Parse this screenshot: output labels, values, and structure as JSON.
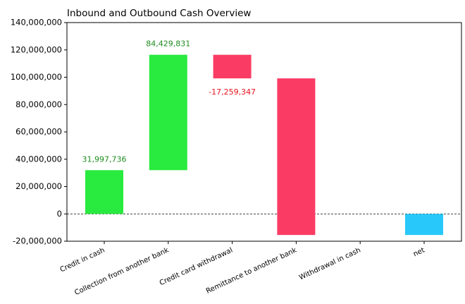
{
  "chart_data": {
    "type": "waterfall",
    "title": "Inbound and Outbound Cash Overview",
    "categories": [
      "Credit in cash",
      "Collection from another bank",
      "Credit card withdrawal",
      "Remittance to another bank",
      "Withdrawal in cash",
      "net"
    ],
    "values": [
      31997736,
      84429831,
      -17259347,
      -114600000,
      0,
      -15431780
    ],
    "value_labels": [
      "31,997,736",
      "84,429,831",
      "-17,259,347",
      null,
      null,
      null
    ],
    "total": true,
    "colors": {
      "increase": "#29ea3e",
      "decrease": "#fa3c64",
      "total": "#29c8fa"
    },
    "label_colors": {
      "increase": "#1e8c1e",
      "decrease": "#e8141e"
    },
    "ylim": [
      -20000000,
      140000000
    ],
    "yticks": [
      {
        "value": -20000000,
        "label": "-20,000,000"
      },
      0,
      {
        "value": 20000000,
        "label": "20,000,000"
      },
      {
        "value": 40000000,
        "label": "40,000,000"
      },
      {
        "value": 60000000,
        "label": "60,000,000"
      },
      {
        "value": 80000000,
        "label": "80,000,000"
      },
      {
        "value": 100000000,
        "label": "100,000,000"
      },
      {
        "value": 120000000,
        "label": "120,000,000"
      },
      {
        "value": 140000000,
        "label": "140,000,000"
      }
    ],
    "zero_line": true
  }
}
